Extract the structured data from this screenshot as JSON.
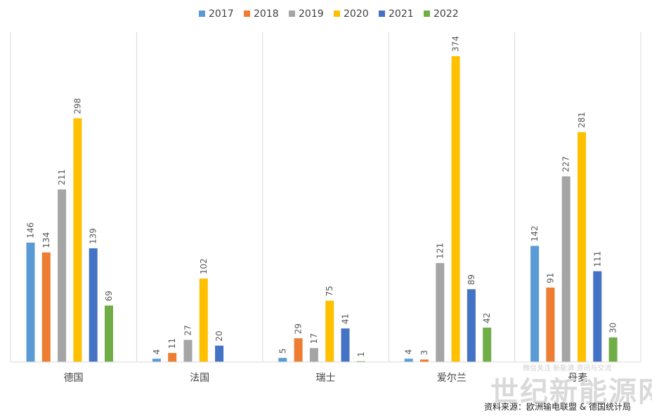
{
  "chart_data": {
    "type": "bar",
    "categories": [
      "德国",
      "法国",
      "瑞士",
      "爱尔兰",
      "丹麦"
    ],
    "series": [
      {
        "name": "2017",
        "color": "#5b9bd5",
        "values": [
          146,
          4,
          5,
          4,
          142
        ]
      },
      {
        "name": "2018",
        "color": "#ed7d31",
        "values": [
          134,
          11,
          29,
          3,
          91
        ]
      },
      {
        "name": "2019",
        "color": "#a5a5a5",
        "values": [
          211,
          27,
          17,
          121,
          227
        ]
      },
      {
        "name": "2020",
        "color": "#ffc000",
        "values": [
          298,
          102,
          75,
          374,
          281
        ]
      },
      {
        "name": "2021",
        "color": "#4472c4",
        "values": [
          139,
          20,
          41,
          89,
          111
        ]
      },
      {
        "name": "2022",
        "color": "#70ad47",
        "values": [
          69,
          null,
          1,
          42,
          30
        ]
      }
    ],
    "ylim": [
      0,
      374
    ],
    "grid": false,
    "legend_position": "top-center",
    "data_labels": true
  },
  "watermark": {
    "text": "世纪新能源网",
    "subtext": "微信关注 新能源 资讯与交流"
  },
  "source_note": "资料来源：欧洲输电联盟 & 德国统计局"
}
